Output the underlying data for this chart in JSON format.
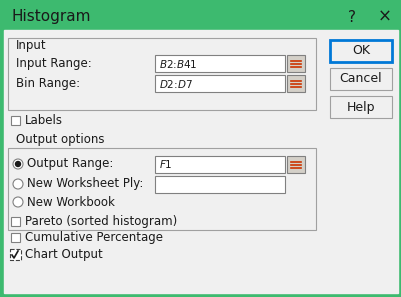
{
  "title": "Histogram",
  "title_bar_color": "#3dba6f",
  "title_text_color": "#1a1a1a",
  "dialog_bg": "#f0f0f0",
  "input_section_label": "Input",
  "input_range_label": "Input Range:",
  "input_range_value": "$B$2:$B$41",
  "bin_range_label": "Bin Range:",
  "bin_range_value": "$D$2:$D$7",
  "labels_label": "Labels",
  "output_section_label": "Output options",
  "output_range_label": "Output Range:",
  "output_range_value": "$F$1",
  "new_worksheet_label": "New Worksheet Ply:",
  "new_workbook_label": "New Workbook",
  "pareto_label": "Pareto (sorted histogram)",
  "cumulative_label": "Cumulative Percentage",
  "chart_output_label": "Chart Output",
  "ok_label": "OK",
  "cancel_label": "Cancel",
  "help_label": "Help",
  "question_mark": "?",
  "close_x": "×",
  "ok_border_color": "#0078d7"
}
